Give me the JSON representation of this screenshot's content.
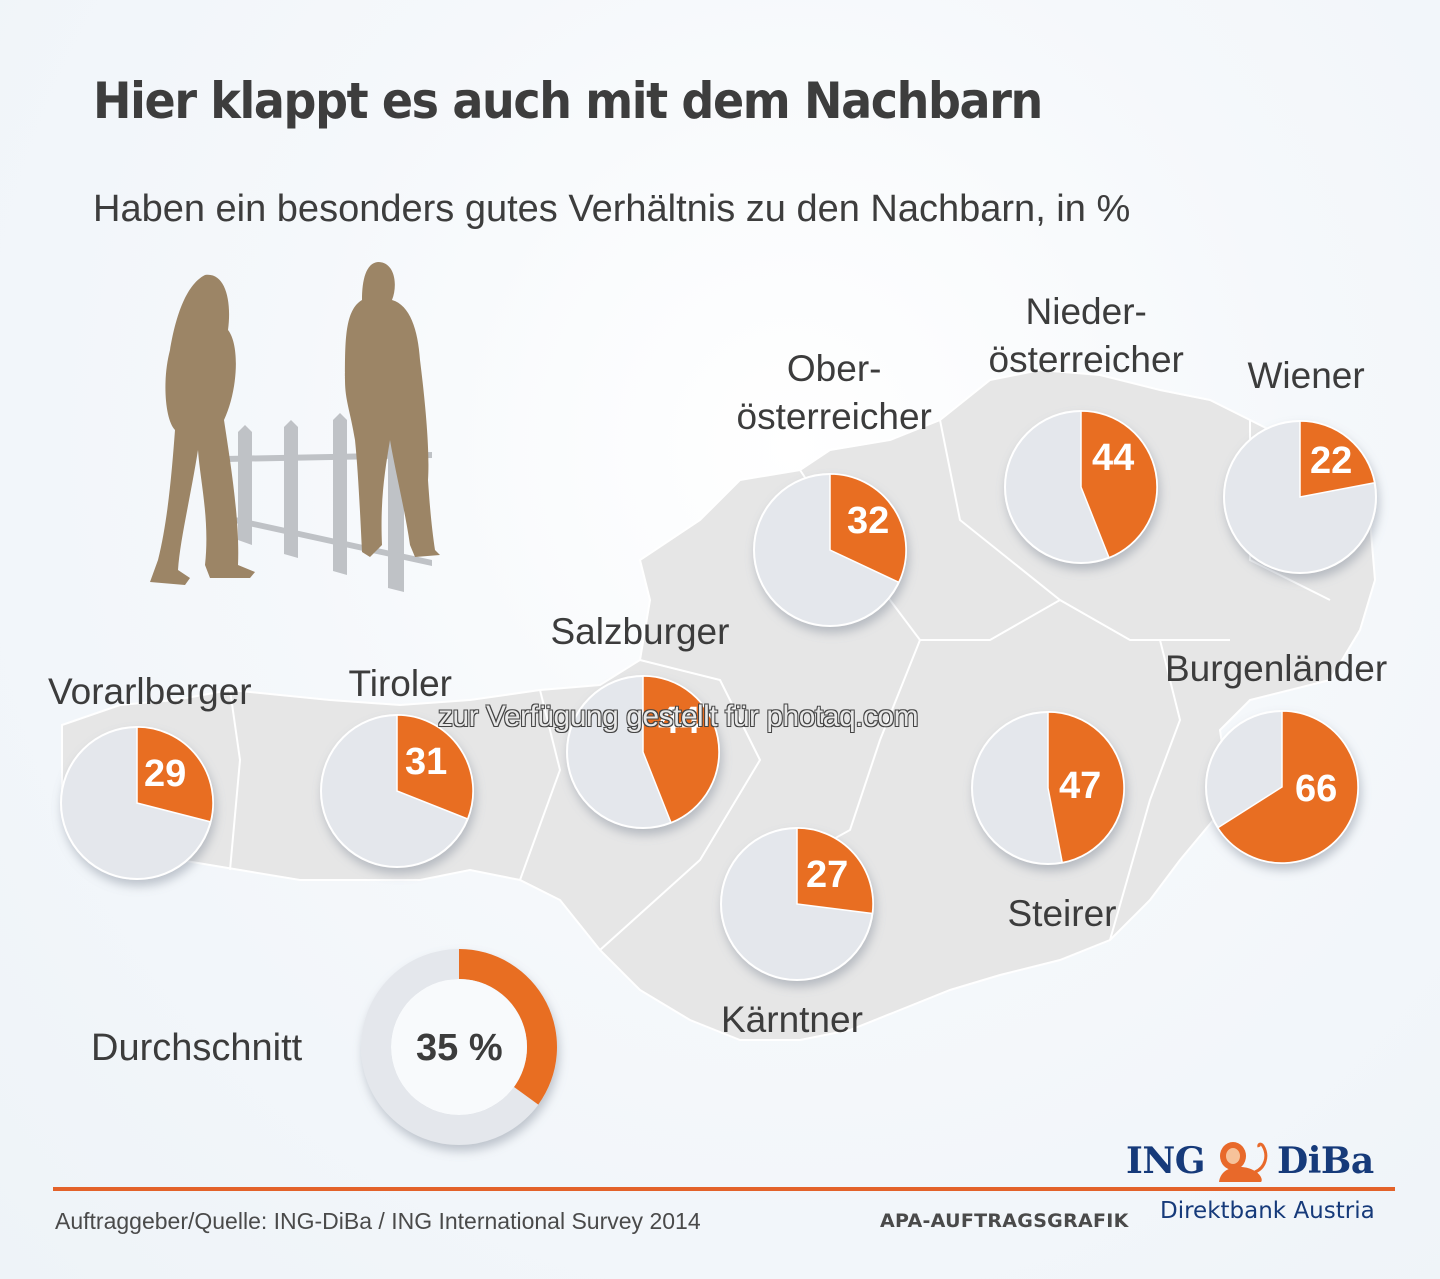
{
  "header": {
    "title": "Hier klappt es auch mit dem Nachbarn",
    "subtitle": "Haben ein besonders gutes Verhältnis zu den Nachbarn, in %"
  },
  "colors": {
    "accent": "#e86e24",
    "pie_bg": "#e4e7ec",
    "map": "#e6e6e6",
    "text": "#3c3c3c",
    "brand_blue": "#163a7a"
  },
  "chart_data": {
    "type": "pie",
    "title": "Hier klappt es auch mit dem Nachbarn",
    "subtitle": "Haben ein besonders gutes Verhältnis zu den Nachbarn, in %",
    "unit": "%",
    "series": [
      {
        "name": "Vorarlberger",
        "label_lines": [
          "Vorarlberger"
        ],
        "value": 29
      },
      {
        "name": "Tiroler",
        "label_lines": [
          "Tiroler"
        ],
        "value": 31
      },
      {
        "name": "Salzburger",
        "label_lines": [
          "Salzburger"
        ],
        "value": 44
      },
      {
        "name": "Oberösterreicher",
        "label_lines": [
          "Ober-",
          "österreicher"
        ],
        "value": 32
      },
      {
        "name": "Niederösterreicher",
        "label_lines": [
          "Nieder-",
          "österreicher"
        ],
        "value": 44
      },
      {
        "name": "Wiener",
        "label_lines": [
          "Wiener"
        ],
        "value": 22
      },
      {
        "name": "Burgenländer",
        "label_lines": [
          "Burgenländer"
        ],
        "value": 66
      },
      {
        "name": "Steirer",
        "label_lines": [
          "Steirer"
        ],
        "value": 47
      },
      {
        "name": "Kärntner",
        "label_lines": [
          "Kärntner"
        ],
        "value": 27
      }
    ],
    "average": {
      "label": "Durchschnitt",
      "value": 35,
      "display": "35 %"
    }
  },
  "illustration": {
    "icon": "neighbors-fence-icon"
  },
  "watermark": "zur Verfügung gestellt für photaq.com",
  "footer": {
    "source": "Auftraggeber/Quelle: ING-DiBa / ING International Survey 2014",
    "apa": "APA-AUFTRAGSGRAFIK",
    "logo_left": "ING",
    "logo_right": "DiBa",
    "logo_icon": "lion-icon",
    "tagline": "Direktbank Austria"
  }
}
